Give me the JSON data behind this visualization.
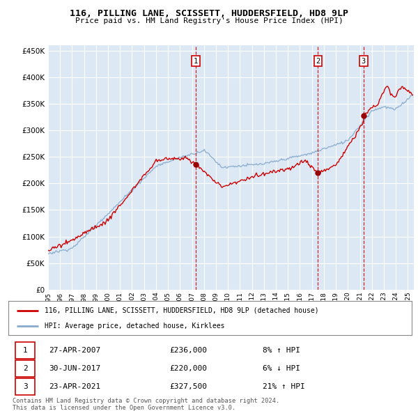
{
  "title_line1": "116, PILLING LANE, SCISSETT, HUDDERSFIELD, HD8 9LP",
  "title_line2": "Price paid vs. HM Land Registry's House Price Index (HPI)",
  "ytick_values": [
    0,
    50000,
    100000,
    150000,
    200000,
    250000,
    300000,
    350000,
    400000,
    450000
  ],
  "ylim": [
    0,
    460000
  ],
  "xlim_start": 1995.0,
  "xlim_end": 2025.5,
  "plot_bg_color": "#dce9f5",
  "grid_color": "#ffffff",
  "red_line_color": "#cc0000",
  "blue_line_color": "#88aacc",
  "transaction_markers": [
    {
      "label": "1",
      "date_x": 2007.32,
      "price": 236000,
      "pct": "8%",
      "direction": "↑",
      "date_str": "27-APR-2007"
    },
    {
      "label": "2",
      "date_x": 2017.5,
      "price": 220000,
      "pct": "6%",
      "direction": "↓",
      "date_str": "30-JUN-2017"
    },
    {
      "label": "3",
      "date_x": 2021.31,
      "price": 327500,
      "pct": "21%",
      "direction": "↑",
      "date_str": "23-APR-2021"
    }
  ],
  "legend_line1": "116, PILLING LANE, SCISSETT, HUDDERSFIELD, HD8 9LP (detached house)",
  "legend_line2": "HPI: Average price, detached house, Kirklees",
  "footer_line1": "Contains HM Land Registry data © Crown copyright and database right 2024.",
  "footer_line2": "This data is licensed under the Open Government Licence v3.0.",
  "xtick_years": [
    1995,
    1996,
    1997,
    1998,
    1999,
    2000,
    2001,
    2002,
    2003,
    2004,
    2005,
    2006,
    2007,
    2008,
    2009,
    2010,
    2011,
    2012,
    2013,
    2014,
    2015,
    2016,
    2017,
    2018,
    2019,
    2020,
    2021,
    2022,
    2023,
    2024,
    2025
  ]
}
